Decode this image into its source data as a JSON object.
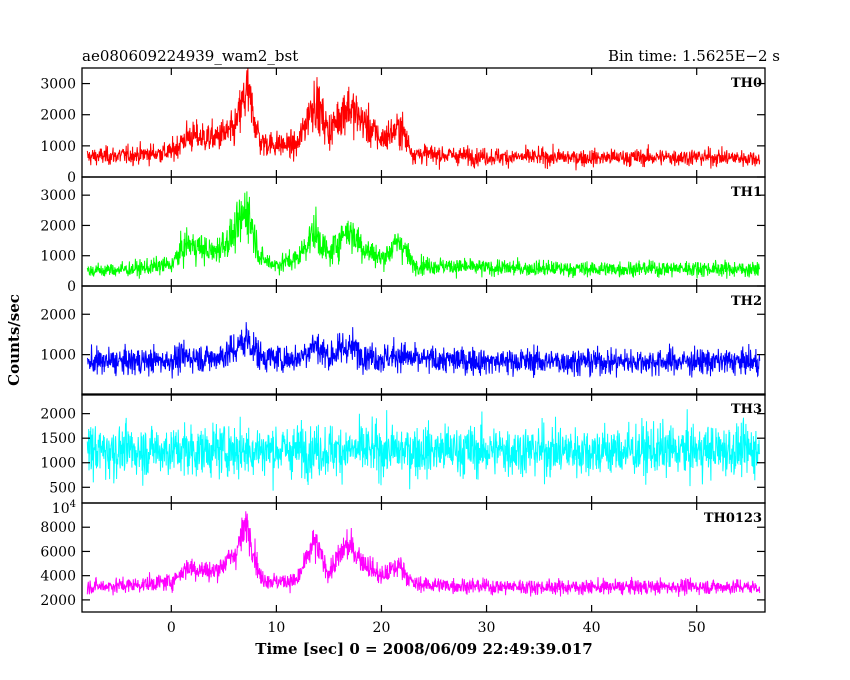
{
  "header": {
    "title": "ae080609224939_wam2_bst",
    "bin_time": "Bin time: 1.5625E−2 s"
  },
  "chart_data": {
    "type": "line",
    "xlabel": "Time [sec] 0 = 2008/06/09 22:49:39.017",
    "ylabel": "Counts/sec",
    "xlim": [
      -8.5,
      56.5
    ],
    "x_ticks": [
      0,
      10,
      20,
      30,
      40,
      50
    ],
    "x_tick_labels": [
      "0",
      "10",
      "20",
      "30",
      "40",
      "50"
    ],
    "grid": false,
    "panels": [
      {
        "name": "TH0",
        "color": "#ff0000",
        "ylim": [
          0,
          3500
        ],
        "y_ticks": [
          0,
          1000,
          2000,
          3000
        ],
        "y_tick_labels": [
          "0",
          "1000",
          "2000",
          "3000"
        ],
        "series": {
          "x": [
            -8,
            -4,
            0,
            1.5,
            4,
            6,
            7.2,
            8.5,
            10,
            12,
            13.6,
            15,
            16.7,
            18.5,
            20,
            21.8,
            23,
            30,
            40,
            50,
            56
          ],
          "y": [
            650,
            700,
            800,
            1300,
            1250,
            1500,
            2800,
            1100,
            1050,
            1000,
            2500,
            1450,
            2300,
            1700,
            1200,
            1600,
            750,
            650,
            620,
            640,
            600
          ]
        }
      },
      {
        "name": "TH1",
        "color": "#00ff00",
        "ylim": [
          0,
          3600
        ],
        "y_ticks": [
          0,
          1000,
          2000,
          3000
        ],
        "y_tick_labels": [
          "0",
          "1000",
          "2000",
          "3000"
        ],
        "series": {
          "x": [
            -8,
            -4,
            0,
            1.5,
            4,
            6,
            7.2,
            8.5,
            10,
            12,
            13.6,
            15,
            16.7,
            18.5,
            20,
            21.8,
            23,
            30,
            40,
            50,
            56
          ],
          "y": [
            500,
            550,
            700,
            1400,
            1100,
            1700,
            2600,
            900,
            700,
            900,
            1800,
            1000,
            1900,
            1200,
            900,
            1500,
            700,
            600,
            560,
            580,
            550
          ]
        }
      },
      {
        "name": "TH2",
        "color": "#0000ff",
        "ylim": [
          0,
          2700
        ],
        "y_ticks": [
          1000,
          2000
        ],
        "y_tick_labels": [
          "1000",
          "2000"
        ],
        "series": {
          "x": [
            -8,
            -4,
            0,
            1.5,
            4,
            6,
            7.2,
            8.5,
            10,
            12,
            13.6,
            15,
            16.7,
            18.5,
            20,
            21.8,
            23,
            30,
            40,
            50,
            56
          ],
          "y": [
            820,
            830,
            860,
            950,
            900,
            1100,
            1400,
            950,
            900,
            900,
            1250,
            950,
            1200,
            1000,
            900,
            1000,
            880,
            840,
            830,
            830,
            820
          ]
        }
      },
      {
        "name": "TH3",
        "color": "#00ffff",
        "ylim": [
          180,
          2400
        ],
        "y_ticks": [
          500,
          1000,
          1500,
          2000
        ],
        "y_tick_labels": [
          "500",
          "1000",
          "1500",
          "2000"
        ],
        "series": {
          "x": [
            -8,
            0,
            10,
            20,
            30,
            40,
            50,
            56
          ],
          "y": [
            1250,
            1250,
            1260,
            1250,
            1250,
            1240,
            1250,
            1250
          ]
        }
      },
      {
        "name": "TH0123",
        "color": "#ff00ff",
        "ylim": [
          1000,
          10000
        ],
        "y_ticks": [
          2000,
          4000,
          6000,
          8000
        ],
        "y_tick_labels": [
          "2000",
          "4000",
          "6000",
          "8000"
        ],
        "top_label": {
          "base": "10",
          "exp": "4"
        },
        "series": {
          "x": [
            -8,
            -4,
            0,
            1.5,
            4,
            6,
            7.2,
            8.5,
            10,
            12,
            13.6,
            15,
            16.7,
            18.5,
            20,
            21.8,
            23,
            30,
            40,
            50,
            56
          ],
          "y": [
            3100,
            3200,
            3500,
            4700,
            4300,
            5700,
            8300,
            3800,
            3500,
            3600,
            6800,
            4200,
            6600,
            5000,
            3900,
            4900,
            3300,
            3100,
            3050,
            3100,
            3050
          ]
        }
      }
    ]
  }
}
